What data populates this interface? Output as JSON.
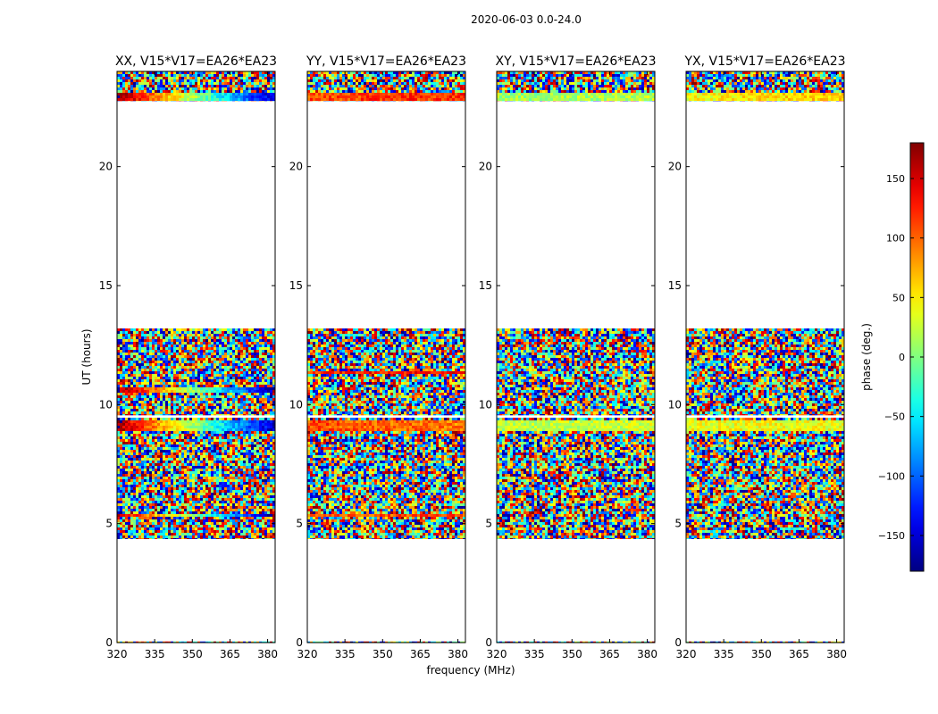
{
  "figure_title": "2020-06-03 0.0-24.0",
  "chart_data": [
    {
      "type": "heatmap",
      "title": "XX, V15*V17=EA26*EA23",
      "xlabel": "",
      "ylabel": "UT (hours)",
      "xlim": [
        320,
        383
      ],
      "ylim": [
        0,
        24
      ],
      "xticks": [
        320,
        335,
        350,
        365,
        380
      ],
      "yticks": [
        0,
        5,
        10,
        15,
        20
      ],
      "data_blocks_ut": [
        [
          0,
          0.05
        ],
        [
          4.35,
          9.45
        ],
        [
          9.55,
          13.2
        ],
        [
          22.75,
          24.0
        ]
      ],
      "empty_gaps_ut": [
        [
          0.05,
          4.35
        ],
        [
          13.2,
          22.75
        ]
      ],
      "dominant_phase_bands": [
        {
          "ut": [
            5.3,
            5.5
          ],
          "phase_left_deg": 150,
          "phase_right_deg": -170
        },
        {
          "ut": [
            9.0,
            9.4
          ],
          "phase_left_deg": 165,
          "phase_right_deg": -160
        },
        {
          "ut": [
            10.6,
            10.8
          ],
          "phase_left_deg": 170,
          "phase_right_deg": -170
        },
        {
          "ut": [
            22.8,
            23.1
          ],
          "phase_left_deg": 170,
          "phase_right_deg": -160
        }
      ]
    },
    {
      "type": "heatmap",
      "title": "YY, V15*V17=EA26*EA23",
      "xlabel": "frequency (MHz)",
      "ylabel": "",
      "xlim": [
        320,
        383
      ],
      "ylim": [
        0,
        24
      ],
      "xticks": [
        320,
        335,
        350,
        365,
        380
      ],
      "yticks": [
        0,
        5,
        10,
        15,
        20
      ],
      "data_blocks_ut": [
        [
          0,
          0.05
        ],
        [
          4.35,
          9.45
        ],
        [
          9.55,
          13.2
        ],
        [
          22.75,
          24.0
        ]
      ],
      "empty_gaps_ut": [
        [
          0.05,
          4.35
        ],
        [
          13.2,
          22.75
        ]
      ],
      "dominant_phase_bands": [
        {
          "ut": [
            5.3,
            5.5
          ],
          "phase_left_deg": 100,
          "phase_right_deg": 110
        },
        {
          "ut": [
            8.9,
            9.4
          ],
          "phase_left_deg": 110,
          "phase_right_deg": 90
        },
        {
          "ut": [
            11.3,
            11.5
          ],
          "phase_left_deg": 120,
          "phase_right_deg": 140
        },
        {
          "ut": [
            22.8,
            23.1
          ],
          "phase_left_deg": 110,
          "phase_right_deg": 120
        }
      ]
    },
    {
      "type": "heatmap",
      "title": "XY, V15*V17=EA26*EA23",
      "xlabel": "",
      "ylabel": "",
      "xlim": [
        320,
        383
      ],
      "ylim": [
        0,
        24
      ],
      "xticks": [
        320,
        335,
        350,
        365,
        380
      ],
      "yticks": [
        0,
        5,
        10,
        15,
        20
      ],
      "data_blocks_ut": [
        [
          0,
          0.05
        ],
        [
          4.35,
          9.45
        ],
        [
          9.55,
          13.2
        ],
        [
          22.75,
          24.0
        ]
      ],
      "empty_gaps_ut": [
        [
          0.05,
          4.35
        ],
        [
          13.2,
          22.75
        ]
      ],
      "dominant_phase_bands": [
        {
          "ut": [
            9.0,
            9.4
          ],
          "phase_left_deg": 20,
          "phase_right_deg": 30
        },
        {
          "ut": [
            22.8,
            23.1
          ],
          "phase_left_deg": 10,
          "phase_right_deg": 20
        }
      ]
    },
    {
      "type": "heatmap",
      "title": "YX, V15*V17=EA26*EA23",
      "xlabel": "",
      "ylabel": "",
      "xlim": [
        320,
        383
      ],
      "ylim": [
        0,
        24
      ],
      "xticks": [
        320,
        335,
        350,
        365,
        380
      ],
      "yticks": [
        0,
        5,
        10,
        15,
        20
      ],
      "data_blocks_ut": [
        [
          0,
          0.05
        ],
        [
          4.35,
          9.45
        ],
        [
          9.55,
          13.2
        ],
        [
          22.75,
          24.0
        ]
      ],
      "empty_gaps_ut": [
        [
          0.05,
          4.35
        ],
        [
          13.2,
          22.75
        ]
      ],
      "dominant_phase_bands": [
        {
          "ut": [
            9.0,
            9.4
          ],
          "phase_left_deg": 40,
          "phase_right_deg": 40
        },
        {
          "ut": [
            22.8,
            23.1
          ],
          "phase_left_deg": 40,
          "phase_right_deg": 70
        }
      ]
    }
  ],
  "colorbar": {
    "label": "phase (deg.)",
    "colormap": "jet",
    "range": [
      -180,
      180
    ],
    "ticks": [
      -150,
      -100,
      -50,
      0,
      50,
      100,
      150
    ],
    "tick_labels": [
      "−150",
      "−100",
      "−50",
      "0",
      "50",
      "100",
      "150"
    ]
  }
}
